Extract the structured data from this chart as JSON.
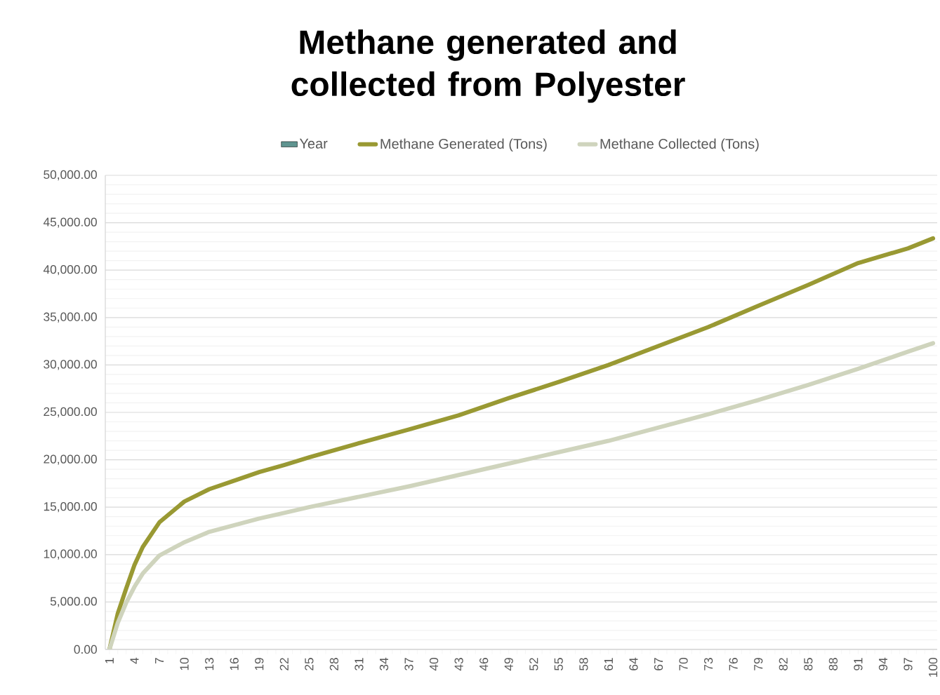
{
  "chart_data": {
    "type": "line",
    "title": "Methane generated and collected from Polyester",
    "xlim": [
      0.5,
      100.5
    ],
    "xticks": [
      1,
      4,
      7,
      10,
      13,
      16,
      19,
      22,
      25,
      28,
      31,
      34,
      37,
      40,
      43,
      46,
      49,
      52,
      55,
      58,
      61,
      64,
      67,
      70,
      73,
      76,
      79,
      82,
      85,
      88,
      91,
      94,
      97,
      100
    ],
    "ylim": [
      0,
      50000
    ],
    "yticks": [
      {
        "value": 0,
        "label": "0.00"
      },
      {
        "value": 5000,
        "label": "5,000.00"
      },
      {
        "value": 10000,
        "label": "10,000.00"
      },
      {
        "value": 15000,
        "label": "15,000.00"
      },
      {
        "value": 20000,
        "label": "20,000.00"
      },
      {
        "value": 25000,
        "label": "25,000.00"
      },
      {
        "value": 30000,
        "label": "30,000.00"
      },
      {
        "value": 35000,
        "label": "35,000.00"
      },
      {
        "value": 40000,
        "label": "40,000.00"
      },
      {
        "value": 45000,
        "label": "45,000.00"
      },
      {
        "value": 50000,
        "label": "50,000.00"
      }
    ],
    "grid": "y",
    "legend": "top",
    "marker": "none",
    "line_style": "solid",
    "series": [
      {
        "name": "Year",
        "type": "bar",
        "color": "#5f9490"
      },
      {
        "name": "Methane Generated (Tons)",
        "color": "#999933",
        "x": [
          1,
          2,
          3,
          4,
          5,
          7,
          10,
          13,
          16,
          19,
          22,
          25,
          31,
          37,
          43,
          49,
          55,
          61,
          67,
          73,
          79,
          85,
          91,
          97,
          100
        ],
        "values": [
          0,
          3800,
          6400,
          8900,
          10800,
          13400,
          15600,
          16900,
          17800,
          18700,
          19450,
          20250,
          21750,
          23200,
          24700,
          26500,
          28200,
          30000,
          32000,
          34000,
          36250,
          38450,
          40750,
          42300,
          43350
        ]
      },
      {
        "name": "Methane Collected (Tons)",
        "color": "#cfd4bd",
        "x": [
          1,
          2,
          3,
          4,
          5,
          7,
          10,
          13,
          16,
          19,
          22,
          25,
          31,
          37,
          43,
          49,
          55,
          61,
          67,
          73,
          79,
          85,
          91,
          97,
          100
        ],
        "values": [
          0,
          2800,
          4900,
          6600,
          8000,
          9900,
          11300,
          12400,
          13100,
          13800,
          14400,
          15000,
          16100,
          17200,
          18400,
          19600,
          20800,
          22000,
          23400,
          24800,
          26300,
          27900,
          29600,
          31400,
          32300
        ]
      }
    ]
  }
}
